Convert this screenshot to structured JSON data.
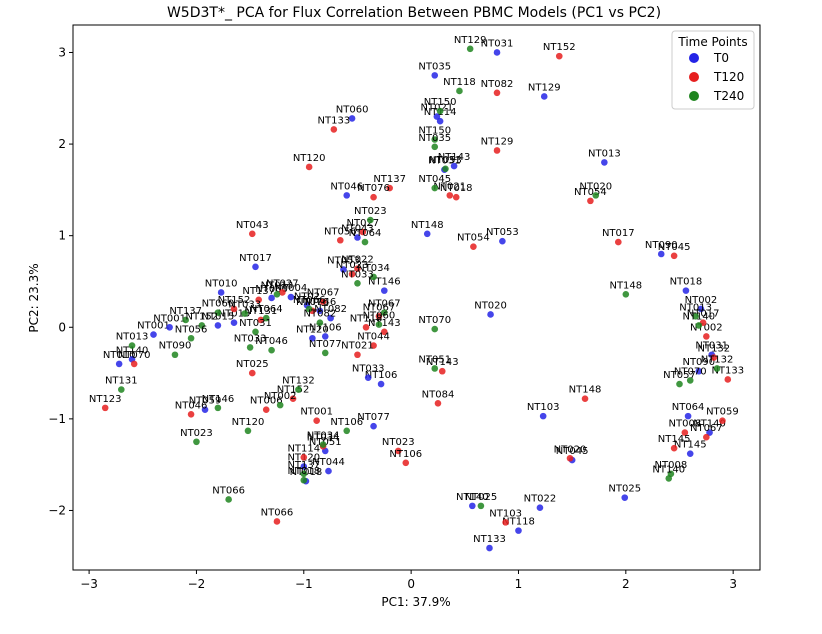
{
  "chart_data": {
    "type": "scatter",
    "title": "W5D3T*_ PCA for Flux Correlation Between PBMC Models (PC1 vs PC2)",
    "xlabel": "PC1: 37.9%",
    "ylabel": "PC2: 23.3%",
    "xlim": [
      -3.15,
      3.25
    ],
    "ylim": [
      -2.65,
      3.3
    ],
    "xticks": [
      -3,
      -2,
      -1,
      0,
      1,
      2,
      3
    ],
    "yticks": [
      -2,
      -1,
      0,
      1,
      2,
      3
    ],
    "xtick_labels": [
      "−3",
      "−2",
      "−1",
      "0",
      "1",
      "2",
      "3"
    ],
    "ytick_labels": [
      "−2",
      "−1",
      "0",
      "1",
      "2",
      "3"
    ],
    "grid": false,
    "legend": {
      "title": "Time Points",
      "position": "top-right"
    },
    "series": [
      {
        "name": "T0",
        "color": "#2424e6",
        "points": [
          {
            "x": 0.8,
            "y": 3.0,
            "label": "NT031"
          },
          {
            "x": 0.22,
            "y": 2.75,
            "label": "NT035"
          },
          {
            "x": -0.55,
            "y": 2.28,
            "label": "NT060"
          },
          {
            "x": 0.24,
            "y": 2.3,
            "label": "NT021"
          },
          {
            "x": 0.27,
            "y": 2.25,
            "label": "NT114"
          },
          {
            "x": 1.24,
            "y": 2.52,
            "label": "NT129"
          },
          {
            "x": 1.8,
            "y": 1.8,
            "label": "NT013"
          },
          {
            "x": 0.31,
            "y": 1.72,
            "label": "NT031"
          },
          {
            "x": 0.4,
            "y": 1.76,
            "label": "NT143"
          },
          {
            "x": -0.6,
            "y": 1.44,
            "label": "NT046"
          },
          {
            "x": 0.15,
            "y": 1.02,
            "label": "NT148"
          },
          {
            "x": -0.5,
            "y": 0.98,
            "label": "NT043"
          },
          {
            "x": 0.85,
            "y": 0.94,
            "label": "NT053"
          },
          {
            "x": 2.33,
            "y": 0.8,
            "label": "NT090"
          },
          {
            "x": -0.63,
            "y": 0.63,
            "label": "NT053"
          },
          {
            "x": -0.25,
            "y": 0.4,
            "label": "NT146"
          },
          {
            "x": -1.45,
            "y": 0.66,
            "label": "NT017"
          },
          {
            "x": -1.77,
            "y": 0.38,
            "label": "NT010"
          },
          {
            "x": -1.3,
            "y": 0.32,
            "label": "NT060"
          },
          {
            "x": -1.12,
            "y": 0.33,
            "label": "NT004"
          },
          {
            "x": -0.97,
            "y": 0.24,
            "label": "NT02"
          },
          {
            "x": -0.85,
            "y": 0.18,
            "label": "NT046"
          },
          {
            "x": -0.75,
            "y": 0.1,
            "label": "NT082"
          },
          {
            "x": -1.65,
            "y": 0.05,
            "label": "NT015"
          },
          {
            "x": -1.8,
            "y": 0.02,
            "label": "NT015"
          },
          {
            "x": -2.4,
            "y": -0.08,
            "label": "NT001"
          },
          {
            "x": -2.25,
            "y": 0.0,
            "label": "NT001"
          },
          {
            "x": -2.72,
            "y": -0.4,
            "label": "NT010"
          },
          {
            "x": -2.6,
            "y": -0.35,
            "label": "NT140"
          },
          {
            "x": 0.74,
            "y": 0.14,
            "label": "NT020"
          },
          {
            "x": 2.56,
            "y": 0.4,
            "label": "NT018"
          },
          {
            "x": 2.7,
            "y": 0.2,
            "label": "NT002"
          },
          {
            "x": 2.8,
            "y": -0.3,
            "label": "NT031"
          },
          {
            "x": 2.68,
            "y": -0.48,
            "label": "NT090"
          },
          {
            "x": -0.8,
            "y": -0.1,
            "label": "NT106"
          },
          {
            "x": -0.92,
            "y": -0.12,
            "label": "NT120"
          },
          {
            "x": -0.28,
            "y": -0.62,
            "label": "NT106"
          },
          {
            "x": -0.4,
            "y": -0.55,
            "label": "NT033"
          },
          {
            "x": -1.92,
            "y": -0.9,
            "label": "NT059"
          },
          {
            "x": -0.35,
            "y": -1.08,
            "label": "NT077"
          },
          {
            "x": 1.23,
            "y": -0.97,
            "label": "NT103"
          },
          {
            "x": 2.58,
            "y": -0.97,
            "label": "NT064"
          },
          {
            "x": -0.8,
            "y": -1.35,
            "label": "NT051"
          },
          {
            "x": -1.0,
            "y": -1.52,
            "label": "NT120"
          },
          {
            "x": -0.77,
            "y": -1.57,
            "label": "NT044"
          },
          {
            "x": -0.98,
            "y": -1.68,
            "label": "NT018"
          },
          {
            "x": 1.5,
            "y": -1.45,
            "label": "NT045"
          },
          {
            "x": 1.99,
            "y": -1.86,
            "label": "NT025"
          },
          {
            "x": 0.57,
            "y": -1.95,
            "label": "NT140"
          },
          {
            "x": 0.73,
            "y": -2.41,
            "label": "NT133"
          },
          {
            "x": 1.2,
            "y": -1.97,
            "label": "NT022"
          },
          {
            "x": 1.0,
            "y": -2.22,
            "label": "NT118"
          },
          {
            "x": 2.6,
            "y": -1.38,
            "label": "NT145"
          },
          {
            "x": 2.78,
            "y": -1.15,
            "label": "NT140"
          }
        ]
      },
      {
        "name": "T120",
        "color": "#e61f1f",
        "points": [
          {
            "x": 1.38,
            "y": 2.96,
            "label": "NT152"
          },
          {
            "x": 0.8,
            "y": 2.56,
            "label": "NT082"
          },
          {
            "x": -0.72,
            "y": 2.16,
            "label": "NT133"
          },
          {
            "x": 0.8,
            "y": 1.93,
            "label": "NT129"
          },
          {
            "x": -0.95,
            "y": 1.75,
            "label": "NT120"
          },
          {
            "x": -0.2,
            "y": 1.52,
            "label": "NT137"
          },
          {
            "x": -0.35,
            "y": 1.42,
            "label": "NT076"
          },
          {
            "x": 0.36,
            "y": 1.44,
            "label": "NT021"
          },
          {
            "x": 0.42,
            "y": 1.42,
            "label": "NT018"
          },
          {
            "x": 1.67,
            "y": 1.38,
            "label": "NT054"
          },
          {
            "x": -1.48,
            "y": 1.02,
            "label": "NT043"
          },
          {
            "x": -0.45,
            "y": 1.04,
            "label": "NT027"
          },
          {
            "x": -0.66,
            "y": 0.95,
            "label": "NT056"
          },
          {
            "x": 0.58,
            "y": 0.88,
            "label": "NT054"
          },
          {
            "x": 1.93,
            "y": 0.93,
            "label": "NT017"
          },
          {
            "x": 2.45,
            "y": 0.78,
            "label": "NT045"
          },
          {
            "x": -0.5,
            "y": 0.64,
            "label": "NT022"
          },
          {
            "x": -0.55,
            "y": 0.58,
            "label": "NT023"
          },
          {
            "x": -1.2,
            "y": 0.38,
            "label": "NT027"
          },
          {
            "x": -1.42,
            "y": 0.3,
            "label": "NT137"
          },
          {
            "x": -0.82,
            "y": 0.28,
            "label": "NT067"
          },
          {
            "x": -1.65,
            "y": 0.2,
            "label": "NT152"
          },
          {
            "x": -0.92,
            "y": 0.18,
            "label": "NT076"
          },
          {
            "x": -0.3,
            "y": 0.12,
            "label": "NT067"
          },
          {
            "x": -0.42,
            "y": 0.0,
            "label": "NT118"
          },
          {
            "x": -1.4,
            "y": 0.08,
            "label": "NT131"
          },
          {
            "x": -0.25,
            "y": -0.05,
            "label": "NT143"
          },
          {
            "x": -0.35,
            "y": -0.2,
            "label": "NT044"
          },
          {
            "x": -0.5,
            "y": -0.3,
            "label": "NT021"
          },
          {
            "x": -2.58,
            "y": -0.4,
            "label": "NT070"
          },
          {
            "x": -2.85,
            "y": -0.88,
            "label": "NT123"
          },
          {
            "x": -1.48,
            "y": -0.5,
            "label": "NT025"
          },
          {
            "x": -1.1,
            "y": -0.78,
            "label": "NT152"
          },
          {
            "x": -1.35,
            "y": -0.9,
            "label": "NT006"
          },
          {
            "x": -2.05,
            "y": -0.95,
            "label": "NT046"
          },
          {
            "x": 0.25,
            "y": -0.83,
            "label": "NT084"
          },
          {
            "x": 0.29,
            "y": -0.48,
            "label": "NT143"
          },
          {
            "x": 1.62,
            "y": -0.78,
            "label": "NT148"
          },
          {
            "x": -0.88,
            "y": -1.02,
            "label": "NT001"
          },
          {
            "x": -0.82,
            "y": -1.3,
            "label": "NT034"
          },
          {
            "x": -1.0,
            "y": -1.42,
            "label": "NT114"
          },
          {
            "x": -0.12,
            "y": -1.35,
            "label": "NT023"
          },
          {
            "x": -0.05,
            "y": -1.48,
            "label": "NT106"
          },
          {
            "x": 1.48,
            "y": -1.43,
            "label": "NT020"
          },
          {
            "x": -1.25,
            "y": -2.12,
            "label": "NT066"
          },
          {
            "x": 0.88,
            "y": -2.13,
            "label": "NT103"
          },
          {
            "x": 2.55,
            "y": -1.15,
            "label": "NT008"
          },
          {
            "x": 2.75,
            "y": -1.2,
            "label": "NT067"
          },
          {
            "x": 2.9,
            "y": -1.02,
            "label": "NT059"
          },
          {
            "x": 2.45,
            "y": -1.32,
            "label": "NT145"
          },
          {
            "x": 2.95,
            "y": -0.57,
            "label": "NT133"
          },
          {
            "x": 2.82,
            "y": -0.33,
            "label": "NT132"
          },
          {
            "x": 2.75,
            "y": -0.1,
            "label": "NT002"
          },
          {
            "x": 2.72,
            "y": 0.05,
            "label": "NT017"
          }
        ]
      },
      {
        "name": "T240",
        "color": "#1f851f",
        "points": [
          {
            "x": 0.55,
            "y": 3.04,
            "label": "NT129"
          },
          {
            "x": 0.45,
            "y": 2.58,
            "label": "NT118"
          },
          {
            "x": 0.27,
            "y": 2.36,
            "label": "NT150"
          },
          {
            "x": 0.22,
            "y": 2.05,
            "label": "NT150"
          },
          {
            "x": 0.22,
            "y": 1.97,
            "label": "NT035"
          },
          {
            "x": 0.32,
            "y": 1.73,
            "label": "NT053"
          },
          {
            "x": 0.22,
            "y": 1.52,
            "label": "NT045"
          },
          {
            "x": 1.72,
            "y": 1.44,
            "label": "NT020"
          },
          {
            "x": -0.38,
            "y": 1.17,
            "label": "NT023"
          },
          {
            "x": -0.43,
            "y": 0.93,
            "label": "NT064"
          },
          {
            "x": -0.35,
            "y": 0.55,
            "label": "NT034"
          },
          {
            "x": -0.5,
            "y": 0.48,
            "label": "NT033"
          },
          {
            "x": 2.0,
            "y": 0.36,
            "label": "NT148"
          },
          {
            "x": -1.25,
            "y": 0.36,
            "label": "NT013"
          },
          {
            "x": -1.55,
            "y": 0.15,
            "label": "NT033"
          },
          {
            "x": -1.35,
            "y": 0.1,
            "label": "NT064"
          },
          {
            "x": -1.8,
            "y": 0.16,
            "label": "NT060"
          },
          {
            "x": -2.1,
            "y": 0.08,
            "label": "NT137"
          },
          {
            "x": -0.25,
            "y": 0.16,
            "label": "NT067"
          },
          {
            "x": -0.3,
            "y": 0.03,
            "label": "NT060"
          },
          {
            "x": -0.95,
            "y": 0.2,
            "label": "NT066"
          },
          {
            "x": -1.95,
            "y": 0.02,
            "label": "NT152"
          },
          {
            "x": -0.85,
            "y": 0.05,
            "label": "NT082"
          },
          {
            "x": -1.45,
            "y": -0.05,
            "label": "NT031"
          },
          {
            "x": -2.6,
            "y": -0.2,
            "label": "NT013"
          },
          {
            "x": -2.05,
            "y": -0.12,
            "label": "NT056"
          },
          {
            "x": -2.2,
            "y": -0.3,
            "label": "NT090"
          },
          {
            "x": -1.5,
            "y": -0.22,
            "label": "NT033"
          },
          {
            "x": -1.3,
            "y": -0.25,
            "label": "NT046"
          },
          {
            "x": -0.8,
            "y": -0.28,
            "label": "NT077"
          },
          {
            "x": 0.22,
            "y": -0.02,
            "label": "NT070"
          },
          {
            "x": 0.22,
            "y": -0.45,
            "label": "NT051"
          },
          {
            "x": -2.7,
            "y": -0.68,
            "label": "NT131"
          },
          {
            "x": -1.05,
            "y": -0.68,
            "label": "NT132"
          },
          {
            "x": -1.22,
            "y": -0.85,
            "label": "NT002"
          },
          {
            "x": -1.8,
            "y": -0.88,
            "label": "NT146"
          },
          {
            "x": -1.52,
            "y": -1.13,
            "label": "NT120"
          },
          {
            "x": -2.0,
            "y": -1.25,
            "label": "NT023"
          },
          {
            "x": -0.6,
            "y": -1.13,
            "label": "NT106"
          },
          {
            "x": -0.82,
            "y": -1.28,
            "label": "NT034"
          },
          {
            "x": -1.0,
            "y": -1.6,
            "label": "NT137"
          },
          {
            "x": -1.0,
            "y": -1.67,
            "label": "NT018"
          },
          {
            "x": -1.7,
            "y": -1.88,
            "label": "NT066"
          },
          {
            "x": 0.65,
            "y": -1.95,
            "label": "NT025"
          },
          {
            "x": 2.42,
            "y": -1.6,
            "label": "NT008"
          },
          {
            "x": 2.4,
            "y": -1.65,
            "label": "NT140"
          },
          {
            "x": 2.6,
            "y": -0.58,
            "label": "NT070"
          },
          {
            "x": 2.65,
            "y": 0.12,
            "label": "NT013"
          },
          {
            "x": 2.68,
            "y": 0.02,
            "label": "NT140"
          },
          {
            "x": 2.85,
            "y": -0.45,
            "label": "NT132"
          },
          {
            "x": 2.5,
            "y": -0.62,
            "label": "NT057"
          }
        ]
      }
    ]
  }
}
